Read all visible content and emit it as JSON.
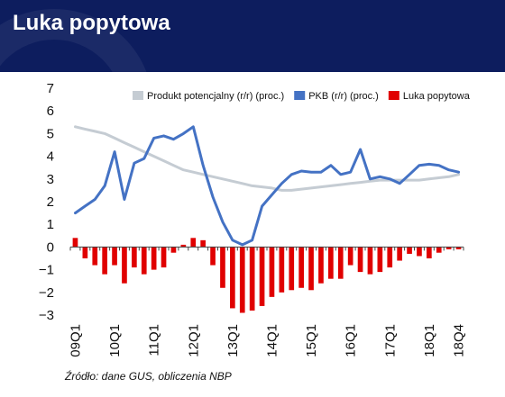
{
  "header": {
    "title": "Luka popytowa"
  },
  "source": "Źródło: dane GUS, obliczenia NBP",
  "colors": {
    "header_bg": "#0d1d5e",
    "potential": "#c5ccd3",
    "gdp": "#4472c4",
    "gap": "#e00000"
  },
  "chart_data": {
    "type": "bar+line",
    "title": "",
    "xlabel": "",
    "ylabel": "",
    "ylim": [
      -3,
      7
    ],
    "yticks": [
      -3,
      -2,
      -1,
      0,
      1,
      2,
      3,
      4,
      5,
      6,
      7
    ],
    "grid": false,
    "legend_position": "top-right",
    "x": [
      "09Q1",
      "09Q2",
      "09Q3",
      "09Q4",
      "10Q1",
      "10Q2",
      "10Q3",
      "10Q4",
      "11Q1",
      "11Q2",
      "11Q3",
      "11Q4",
      "12Q1",
      "12Q2",
      "12Q3",
      "12Q4",
      "13Q1",
      "13Q2",
      "13Q3",
      "13Q4",
      "14Q1",
      "14Q2",
      "14Q3",
      "14Q4",
      "15Q1",
      "15Q2",
      "15Q3",
      "15Q4",
      "16Q1",
      "16Q2",
      "16Q3",
      "16Q4",
      "17Q1",
      "17Q2",
      "17Q3",
      "17Q4",
      "18Q1",
      "18Q2",
      "18Q3",
      "18Q4"
    ],
    "x_tick_labels": [
      "09Q1",
      "10Q1",
      "11Q1",
      "12Q1",
      "13Q1",
      "14Q1",
      "15Q1",
      "16Q1",
      "17Q1",
      "18Q1",
      "18Q4"
    ],
    "series": [
      {
        "name": "Produkt potencjalny (r/r) (proc.)",
        "kind": "line",
        "color": "#c5ccd3",
        "values": [
          5.3,
          5.2,
          5.1,
          5.0,
          4.8,
          4.6,
          4.4,
          4.2,
          4.0,
          3.8,
          3.6,
          3.4,
          3.3,
          3.2,
          3.1,
          3.0,
          2.9,
          2.8,
          2.7,
          2.65,
          2.6,
          2.5,
          2.5,
          2.55,
          2.6,
          2.65,
          2.7,
          2.75,
          2.8,
          2.85,
          2.9,
          2.95,
          2.95,
          2.95,
          2.95,
          2.95,
          3.0,
          3.05,
          3.1,
          3.2
        ]
      },
      {
        "name": "PKB (r/r) (proc.)",
        "kind": "line",
        "color": "#4472c4",
        "values": [
          1.5,
          1.8,
          2.1,
          2.7,
          4.2,
          2.1,
          3.7,
          3.9,
          4.8,
          4.9,
          4.75,
          5.0,
          5.3,
          3.6,
          2.2,
          1.1,
          0.3,
          0.1,
          0.3,
          1.8,
          2.3,
          2.8,
          3.2,
          3.35,
          3.3,
          3.3,
          3.6,
          3.2,
          3.3,
          4.3,
          3.0,
          3.1,
          3.0,
          2.8,
          3.2,
          3.6,
          3.65,
          3.6,
          3.4,
          3.3
        ]
      },
      {
        "name": "Luka popytowa",
        "kind": "bar",
        "color": "#e00000",
        "values": [
          0.4,
          -0.5,
          -0.8,
          -1.2,
          -0.8,
          -1.6,
          -0.9,
          -1.2,
          -1.0,
          -0.9,
          -0.25,
          0.1,
          0.4,
          0.3,
          -0.8,
          -1.8,
          -2.7,
          -2.9,
          -2.8,
          -2.6,
          -2.2,
          -2.0,
          -1.9,
          -1.8,
          -1.9,
          -1.6,
          -1.4,
          -1.4,
          -0.8,
          -1.1,
          -1.2,
          -1.1,
          -0.9,
          -0.6,
          -0.3,
          -0.4,
          -0.5,
          -0.25,
          -0.1,
          -0.1
        ]
      }
    ]
  }
}
